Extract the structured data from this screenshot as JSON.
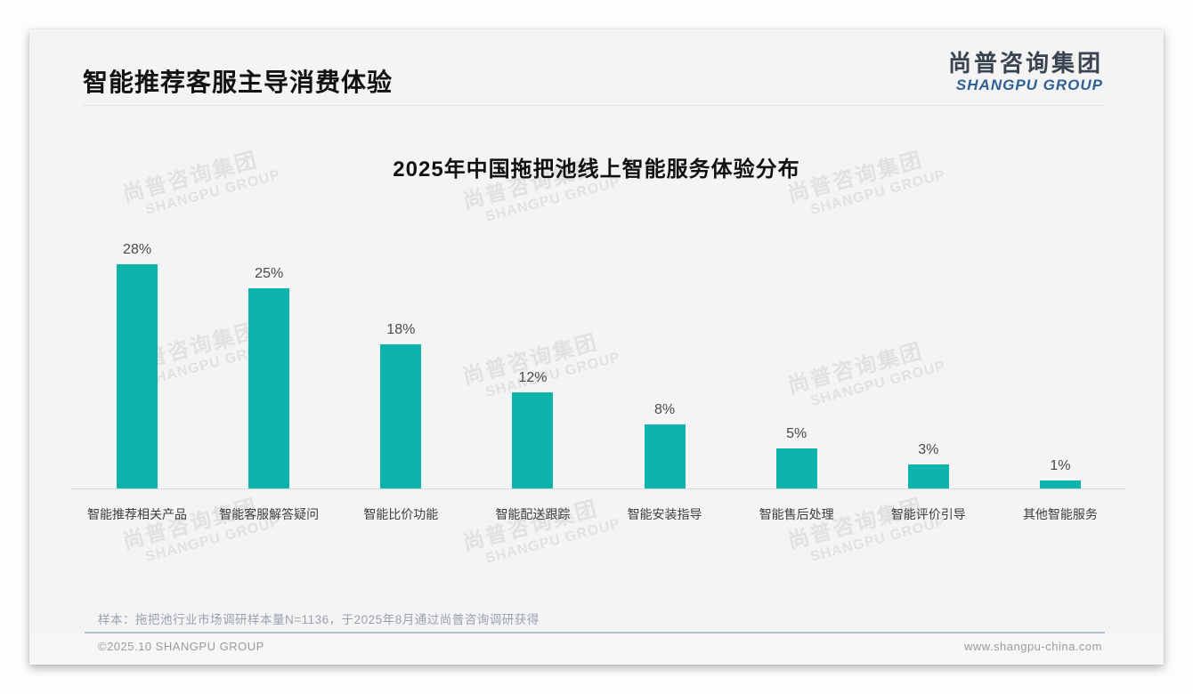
{
  "page": {
    "title": "智能推荐客服主导消费体验"
  },
  "brand": {
    "logo_cn": "尚普咨询集团",
    "logo_en": "SHANGPU GROUP"
  },
  "watermark": {
    "cn": "尚普咨询集团",
    "en": "SHANGPU GROUP"
  },
  "chart_data": {
    "type": "bar",
    "title": "2025年中国拖把池线上智能服务体验分布",
    "categories": [
      "智能推荐相关产品",
      "智能客服解答疑问",
      "智能比价功能",
      "智能配送跟踪",
      "智能安装指导",
      "智能售后处理",
      "智能评价引导",
      "其他智能服务"
    ],
    "values": [
      28,
      25,
      18,
      12,
      8,
      5,
      3,
      1
    ],
    "unit": "%",
    "bar_color": "#0db4ab",
    "xlabel": "",
    "ylabel": "",
    "ylim": [
      0,
      30
    ],
    "grid": false,
    "legend_position": "none"
  },
  "note": "样本：拖把池行业市场调研样本量N=1136，于2025年8月通过尚普咨询调研获得",
  "footer": {
    "left": "©2025.10 SHANGPU GROUP",
    "right": "www.shangpu-china.com"
  }
}
